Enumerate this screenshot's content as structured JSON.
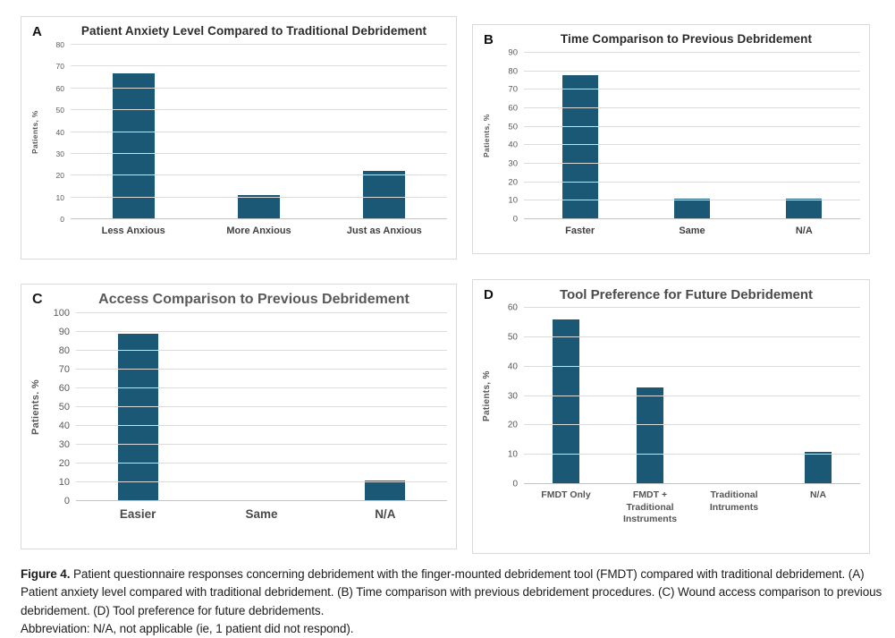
{
  "colors": {
    "bar": "#1a5876",
    "gridline": "#dcdcdc"
  },
  "chart_data": [
    {
      "panel": "A",
      "type": "bar",
      "title": "Patient Anxiety Level Compared to Traditional Debridement",
      "xlabel": "",
      "ylabel": "Patients, %",
      "categories": [
        "Less Anxious",
        "More Anxious",
        "Just as Anxious"
      ],
      "values": [
        67,
        11,
        22
      ],
      "ylim": [
        0,
        80
      ],
      "ytick_step": 10,
      "grid": true,
      "legend": "none"
    },
    {
      "panel": "B",
      "type": "bar",
      "title": "Time Comparison to Previous Debridement",
      "xlabel": "",
      "ylabel": "Patients, %",
      "categories": [
        "Faster",
        "Same",
        "N/A"
      ],
      "values": [
        78,
        11,
        11
      ],
      "ylim": [
        0,
        90
      ],
      "ytick_step": 10,
      "grid": true,
      "legend": "none"
    },
    {
      "panel": "C",
      "type": "bar",
      "title": "Access Comparison to Previous Debridement",
      "xlabel": "",
      "ylabel": "Patients. %",
      "categories": [
        "Easier",
        "Same",
        "N/A"
      ],
      "values": [
        89,
        0,
        11
      ],
      "ylim": [
        0,
        100
      ],
      "ytick_step": 10,
      "grid": true,
      "legend": "none"
    },
    {
      "panel": "D",
      "type": "bar",
      "title": "Tool Preference for Future Debridement",
      "xlabel": "",
      "ylabel": "Patients, %",
      "categories": [
        "FMDT Only",
        "FMDT +\nTraditional\nInstruments",
        "Traditional\nIntruments",
        "N/A"
      ],
      "values": [
        56,
        33,
        0,
        11
      ],
      "ylim": [
        0,
        60
      ],
      "ytick_step": 10,
      "grid": true,
      "legend": "none"
    }
  ],
  "figure": {
    "caption_lead": "Figure 4.",
    "caption_body": " Patient questionnaire responses concerning debridement with the finger-mounted debridement tool (FMDT) compared with traditional debridement. (A) Patient anxiety level compared with traditional debridement. (B) Time comparison with previous debridement procedures. (C) Wound access comparison to previous debridement. (D) Tool preference for future debridements.",
    "abbreviation_note": "Abbreviation: N/A, not applicable (ie, 1 patient did not respond)."
  }
}
